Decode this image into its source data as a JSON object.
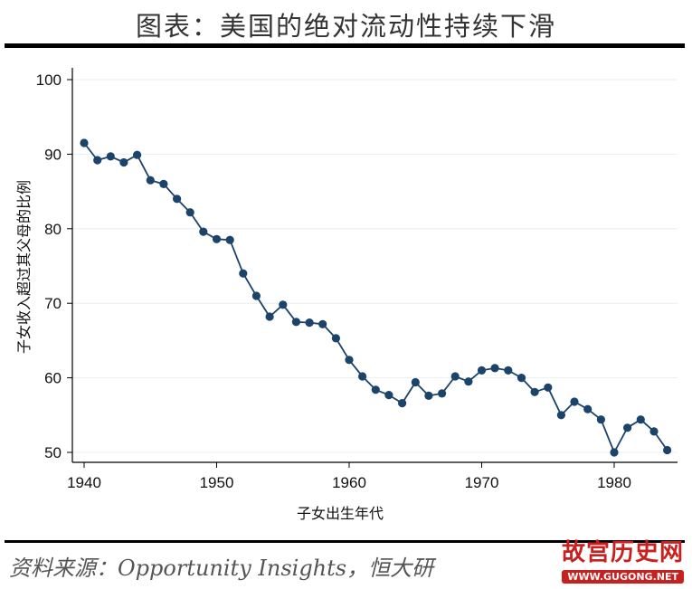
{
  "title": "图表：美国的绝对流动性持续下滑",
  "source": "资料来源：Opportunity Insights，恒大研",
  "watermark": {
    "main": "故宫历史网",
    "url": "WWW.GUGONG.NET"
  },
  "colors": {
    "series": "#1c4369",
    "logo": "#c8201e"
  },
  "chart_data": {
    "type": "line",
    "title": "",
    "xlabel": "子女出生年代",
    "ylabel": "子女收入超过其父母的比例",
    "xlim": [
      1940,
      1985
    ],
    "ylim": [
      50,
      100
    ],
    "x_ticks": [
      1940,
      1950,
      1960,
      1970,
      1980
    ],
    "y_ticks": [
      50,
      60,
      70,
      80,
      90,
      100
    ],
    "grid": true,
    "series": [
      {
        "x": [
          1940,
          1941,
          1942,
          1943,
          1944,
          1945,
          1946,
          1947,
          1948,
          1949,
          1950,
          1951,
          1952,
          1953,
          1954,
          1955,
          1956,
          1957,
          1958,
          1959,
          1960,
          1961,
          1962,
          1963,
          1964,
          1965,
          1966,
          1967,
          1968,
          1969,
          1970,
          1971,
          1972,
          1973,
          1974,
          1975,
          1976,
          1977,
          1978,
          1979,
          1980,
          1981,
          1982,
          1983,
          1984
        ],
        "y": [
          91.5,
          89.2,
          89.7,
          88.9,
          89.9,
          86.5,
          86.0,
          84.0,
          82.2,
          79.6,
          78.6,
          78.5,
          74.0,
          71.0,
          68.2,
          69.8,
          67.5,
          67.4,
          67.2,
          65.3,
          62.4,
          60.2,
          58.4,
          57.7,
          56.6,
          59.4,
          57.6,
          57.9,
          60.2,
          59.5,
          61.0,
          61.3,
          61.0,
          60.0,
          58.1,
          58.7,
          55.0,
          56.8,
          55.8,
          54.4,
          50.0,
          53.3,
          54.4,
          52.8,
          50.3
        ]
      }
    ]
  }
}
